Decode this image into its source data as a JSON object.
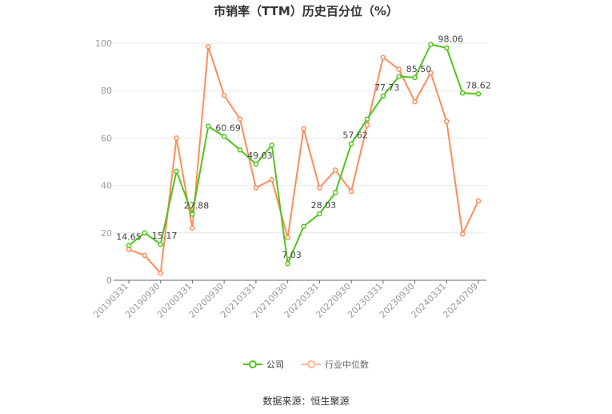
{
  "chart_data": {
    "type": "line",
    "title": "市销率（TTM）历史百分位（%）",
    "x": [
      "20190331",
      "20190630",
      "20190930",
      "20191231",
      "20200331",
      "20200630",
      "20200930",
      "20201231",
      "20210331",
      "20210630",
      "20210930",
      "20211231",
      "20220331",
      "20220630",
      "20220930",
      "20221231",
      "20230331",
      "20230630",
      "20230930",
      "20231231",
      "20240331",
      "20240630",
      "20240709"
    ],
    "xtick_labels": [
      "20190331",
      "20190930",
      "20200331",
      "20200930",
      "20210331",
      "20210930",
      "20220331",
      "20220930",
      "20230331",
      "20230930",
      "20240331",
      "20240709"
    ],
    "ylim": [
      0,
      100
    ],
    "yticks": [
      0,
      20,
      40,
      60,
      80,
      100
    ],
    "grid": true,
    "legend_position": "bottom",
    "series": [
      {
        "name": "公司",
        "color": "#52c41a",
        "values": [
          14.65,
          20,
          15.17,
          46,
          27.88,
          65,
          60.69,
          55,
          49.03,
          57,
          7.03,
          22.7,
          28.03,
          37,
          57.62,
          68,
          77.73,
          86,
          85.5,
          99.5,
          98.06,
          79,
          78.62
        ],
        "labels": [
          "14.65",
          null,
          "15.17",
          null,
          "27.88",
          null,
          "60.69",
          null,
          "49.03",
          null,
          "7.03",
          null,
          "28.03",
          null,
          "57.62",
          null,
          "77.73",
          null,
          "85.50",
          null,
          "98.06",
          null,
          "78.62"
        ]
      },
      {
        "name": "行业中位数",
        "color": "#ff8c5a",
        "values": [
          13,
          10.5,
          3,
          60,
          22,
          98.6,
          78,
          68,
          39,
          42.5,
          18,
          64,
          39,
          46.5,
          37.5,
          65.5,
          94,
          89,
          75.3,
          87.5,
          67,
          19.5,
          33.5
        ]
      }
    ]
  },
  "source": "数据来源：恒生聚源"
}
